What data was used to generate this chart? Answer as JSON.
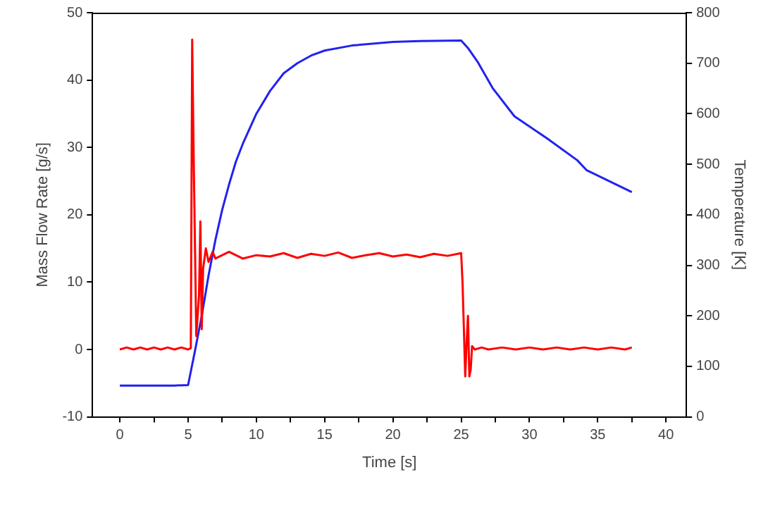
{
  "chart_data": {
    "type": "line",
    "xlabel": "Time [s]",
    "ylabel": "Mass Flow Rate [g/s]",
    "y2label": "Temperature [K]",
    "xlim": [
      -2,
      41.5
    ],
    "xticks": [
      0,
      {
        "value": 2.5,
        "label": null
      },
      5,
      {
        "value": 7.5,
        "label": null
      },
      10,
      {
        "value": 12.5,
        "label": null
      },
      15,
      {
        "value": 17.5,
        "label": null
      },
      20,
      {
        "value": 22.5,
        "label": null
      },
      25,
      {
        "value": 27.5,
        "label": null
      },
      30,
      {
        "value": 32.5,
        "label": null
      },
      35,
      {
        "value": 37.5,
        "label": null
      },
      40
    ],
    "ylim": [
      -10,
      50
    ],
    "yticks": [
      -10,
      0,
      10,
      20,
      30,
      40,
      50
    ],
    "y2lim": [
      0,
      800
    ],
    "y2ticks": [
      0,
      100,
      200,
      300,
      400,
      500,
      600,
      700,
      800
    ],
    "grid": false,
    "legend": false,
    "marker": "none",
    "line_style": "solid",
    "series": [
      {
        "color": "#ff0000",
        "x": [
          0,
          0.5,
          1,
          1.5,
          2,
          2.5,
          3,
          3.5,
          4,
          4.5,
          5,
          5.2,
          5.3,
          5.4,
          5.6,
          5.8,
          5.9,
          6.0,
          6.1,
          6.3,
          6.5,
          6.8,
          7,
          7.5,
          8,
          9,
          10,
          11,
          12,
          13,
          14,
          15,
          16,
          17,
          18,
          19,
          20,
          21,
          22,
          23,
          24,
          25,
          25.1,
          25.3,
          25.4,
          25.5,
          25.6,
          25.7,
          25.8,
          26,
          26.5,
          27,
          28,
          29,
          30,
          31,
          32,
          33,
          34,
          35,
          36,
          37,
          37.5
        ],
        "values": [
          0,
          0.3,
          0,
          0.3,
          0,
          0.3,
          0,
          0.3,
          0,
          0.3,
          0,
          0.2,
          46,
          30,
          2,
          8,
          19,
          3,
          12,
          15,
          13,
          14.5,
          13.5,
          14,
          14.5,
          13.5,
          14,
          13.8,
          14.3,
          13.6,
          14.2,
          13.9,
          14.4,
          13.6,
          14,
          14.3,
          13.8,
          14.1,
          13.7,
          14.2,
          13.9,
          14.3,
          10,
          -4,
          1,
          5,
          -4,
          -3,
          0.5,
          0,
          0.3,
          0,
          0.3,
          0,
          0.3,
          0,
          0.3,
          0,
          0.3,
          0,
          0.3,
          0,
          0.3
        ]
      },
      {
        "color": "#2222ee",
        "axis": "y2",
        "x": [
          0,
          2,
          4,
          5,
          5.5,
          6,
          6.5,
          7,
          7.5,
          8,
          8.5,
          9,
          10,
          11,
          12,
          13,
          14,
          15,
          17,
          20,
          22,
          25,
          25.5,
          26.2,
          27.3,
          28.9,
          31.3,
          33.5,
          34.2,
          37.5
        ],
        "values": [
          62,
          62,
          62,
          63,
          130,
          200,
          280,
          350,
          410,
          460,
          505,
          540,
          600,
          645,
          680,
          700,
          715,
          725,
          735,
          742,
          744,
          745,
          730,
          703,
          651,
          595,
          551,
          508,
          488,
          445
        ]
      }
    ]
  }
}
